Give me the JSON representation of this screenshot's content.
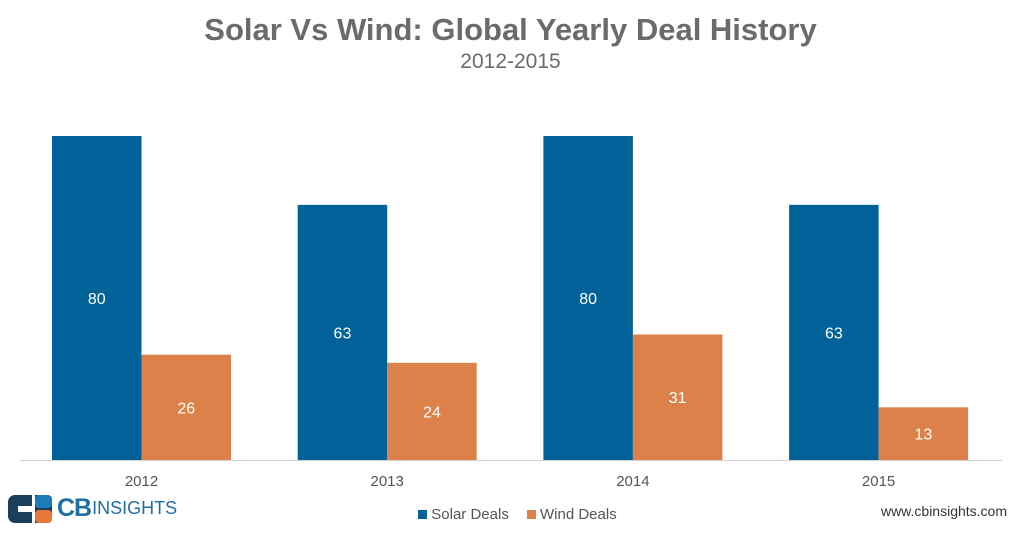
{
  "chart_data": {
    "type": "bar",
    "title": "Solar Vs Wind: Global Yearly Deal History",
    "subtitle": "2012-2015",
    "categories": [
      "2012",
      "2013",
      "2014",
      "2015"
    ],
    "series": [
      {
        "name": "Solar Deals",
        "color": "#01629a",
        "values": [
          80,
          63,
          80,
          63
        ]
      },
      {
        "name": "Wind Deals",
        "color": "#dc8149",
        "values": [
          26,
          24,
          31,
          13
        ]
      }
    ],
    "ylim": [
      0,
      80
    ],
    "grid": false,
    "legend_position": "bottom-center"
  },
  "branding": {
    "logo_text_bold": "CB",
    "logo_text": "INSIGHTS",
    "url": "www.cbinsights.com"
  }
}
